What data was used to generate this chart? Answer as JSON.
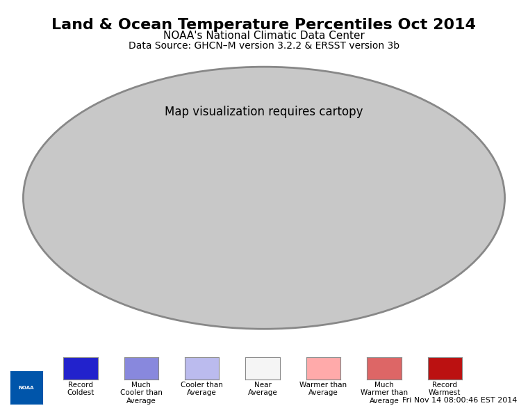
{
  "title": "Land & Ocean Temperature Percentiles Oct 2014",
  "subtitle": "NOAA's National Climatic Data Center",
  "datasource": "Data Source: GHCN–M version 3.2.2 & ERSST version 3b",
  "timestamp": "Fri Nov 14 08:00:46 EST 2014",
  "legend_labels": [
    "Record\nColdest",
    "Much\nCooler than\nAverage",
    "Cooler than\nAverage",
    "Near\nAverage",
    "Warmer than\nAverage",
    "Much\nWarmer than\nAverage",
    "Record\nWarmest"
  ],
  "legend_colors": [
    "#2222CC",
    "#8888DD",
    "#BBBBEE",
    "#F5F5F5",
    "#FFAAAA",
    "#DD6666",
    "#BB1111"
  ],
  "bg_color": "#FFFFFF",
  "ocean_color": "#AAAAAA",
  "globe_bg": "#C8C8C8"
}
